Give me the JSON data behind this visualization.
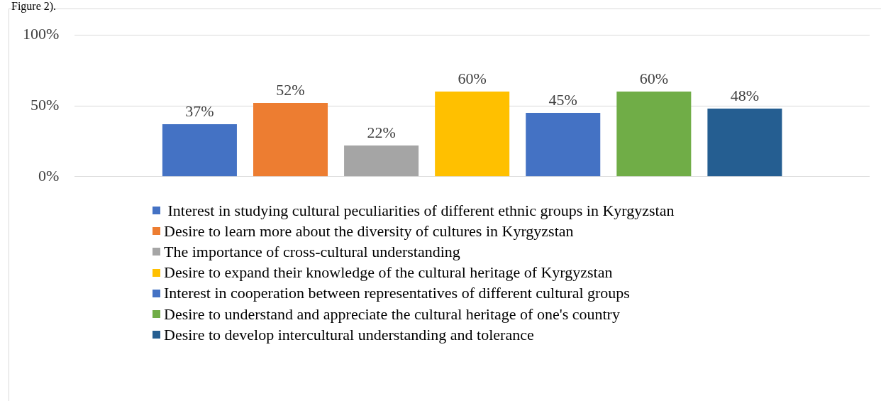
{
  "chart_data": {
    "type": "bar",
    "categories": [
      null
    ],
    "series": [
      {
        "name": " Interest in studying cultural peculiarities of different ethnic groups in Kyrgyzstan",
        "color": "#4472c4",
        "values": [
          37
        ],
        "value_labels": [
          "37%"
        ]
      },
      {
        "name": "Desire to learn more about the diversity of cultures in Kyrgyzstan",
        "color": "#ed7d31",
        "values": [
          52
        ],
        "value_labels": [
          "52%"
        ]
      },
      {
        "name": "The importance of cross-cultural understanding",
        "color": "#a5a5a5",
        "values": [
          22
        ],
        "value_labels": [
          "22%"
        ]
      },
      {
        "name": "Desire to expand their knowledge of the cultural heritage of Kyrgyzstan",
        "color": "#ffc000",
        "values": [
          60
        ],
        "value_labels": [
          "60%"
        ]
      },
      {
        "name": "Interest in cooperation between representatives of different cultural groups",
        "color": "#4472c4",
        "values": [
          45
        ],
        "value_labels": [
          "45%"
        ]
      },
      {
        "name": "Desire to understand and appreciate the cultural heritage of one's country",
        "color": "#70ad47",
        "values": [
          60
        ],
        "value_labels": [
          "60%"
        ]
      },
      {
        "name": "Desire to develop intercultural understanding and tolerance",
        "color": "#255e91",
        "values": [
          48
        ],
        "value_labels": [
          "48%"
        ]
      }
    ],
    "ylim": [
      0,
      100
    ],
    "yticks": [
      {
        "value": 0,
        "label": "0%"
      },
      {
        "value": 50,
        "label": "50%"
      },
      {
        "value": 100,
        "label": "100%"
      }
    ],
    "grid": "y",
    "legend": "bottom",
    "annotations": [
      "Figure 2)."
    ]
  }
}
